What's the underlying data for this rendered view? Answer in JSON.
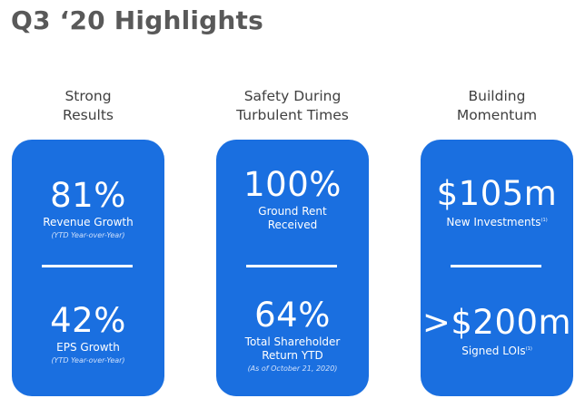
{
  "title": "Q3 ‘20 Highlights",
  "columns": [
    {
      "heading": "Strong\nResults",
      "metrics": [
        {
          "value": "81%",
          "label": "Revenue Growth",
          "note": "(YTD Year-over-Year)",
          "sup": ""
        },
        {
          "value": "42%",
          "label": "EPS Growth",
          "note": "(YTD Year-over-Year)",
          "sup": ""
        }
      ]
    },
    {
      "heading": "Safety During\nTurbulent Times",
      "metrics": [
        {
          "value": "100%",
          "label": "Ground Rent\nReceived",
          "note": "",
          "sup": ""
        },
        {
          "value": "64%",
          "label": "Total Shareholder\nReturn YTD",
          "note": "(As of October 21, 2020)",
          "sup": ""
        }
      ]
    },
    {
      "heading": "Building\nMomentum",
      "metrics": [
        {
          "value": "$105m",
          "label": "New Investments",
          "note": "",
          "sup": "(1)"
        },
        {
          "value": ">$200m",
          "label": "Signed LOIs",
          "note": "",
          "sup": "(1)"
        }
      ]
    }
  ],
  "colors": {
    "card": "#1a6fe0",
    "title": "#595959",
    "heading": "#404040"
  }
}
